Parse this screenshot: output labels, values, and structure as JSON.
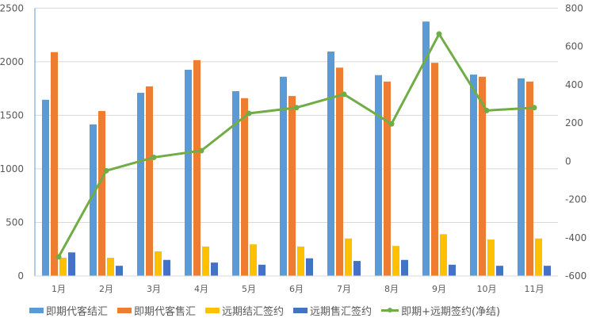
{
  "chart_data": {
    "type": "bar",
    "categories": [
      "1月",
      "2月",
      "3月",
      "4月",
      "5月",
      "6月",
      "7月",
      "8月",
      "9月",
      "10月",
      "11月"
    ],
    "series": [
      {
        "name": "即期代客结汇",
        "type": "bar",
        "axis": "left",
        "color": "#5B9BD5",
        "values": [
          1645,
          1415,
          1710,
          1925,
          1725,
          1860,
          2095,
          1875,
          2375,
          1880,
          1845
        ]
      },
      {
        "name": "即期代客售汇",
        "type": "bar",
        "axis": "left",
        "color": "#ED7D31",
        "values": [
          2090,
          1540,
          1770,
          2015,
          1660,
          1680,
          1945,
          1815,
          1990,
          1860,
          1815
        ]
      },
      {
        "name": "远期结汇签约",
        "type": "bar",
        "axis": "left",
        "color": "#FFC000",
        "values": [
          170,
          170,
          230,
          275,
          295,
          275,
          350,
          280,
          390,
          340,
          350
        ]
      },
      {
        "name": "远期售汇签约",
        "type": "bar",
        "axis": "left",
        "color": "#4472C4",
        "values": [
          220,
          95,
          150,
          125,
          105,
          165,
          140,
          150,
          105,
          95,
          95
        ]
      },
      {
        "name": "即期+远期签约(净结)",
        "type": "line",
        "axis": "right",
        "color": "#70AD47",
        "values": [
          -500,
          -50,
          20,
          55,
          250,
          280,
          350,
          195,
          665,
          265,
          280
        ]
      }
    ],
    "left_axis": {
      "min": 0,
      "max": 2500,
      "ticks": [
        0,
        500,
        1000,
        1500,
        2000,
        2500
      ]
    },
    "right_axis": {
      "min": -600,
      "max": 800,
      "ticks": [
        -600,
        -400,
        -200,
        0,
        200,
        400,
        600,
        800
      ]
    },
    "grid": true,
    "legend": "bottom"
  }
}
